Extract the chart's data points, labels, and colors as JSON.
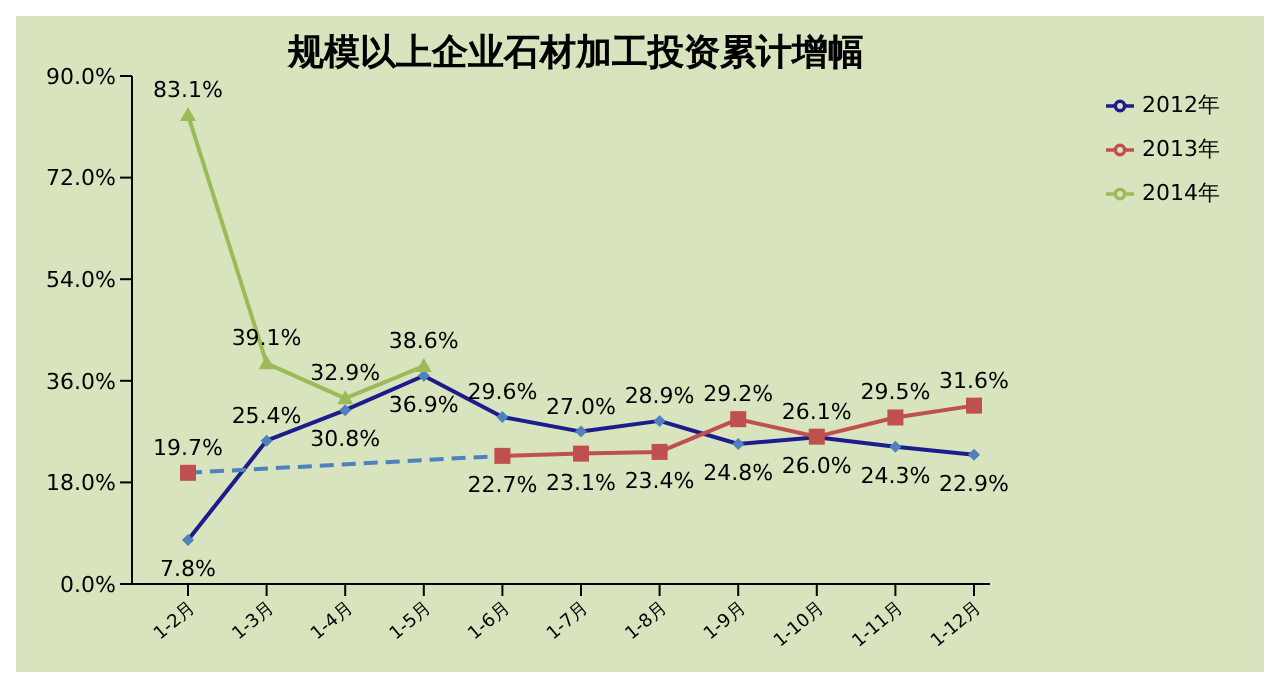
{
  "chart_data": {
    "type": "line",
    "title": "规模以上企业石材加工投资累计增幅",
    "categories": [
      "1-2月",
      "1-3月",
      "1-4月",
      "1-5月",
      "1-6月",
      "1-7月",
      "1-8月",
      "1-9月",
      "1-10月",
      "1-11月",
      "1-12月"
    ],
    "series": [
      {
        "name": "2012年",
        "color": "#1c1c8c",
        "marker": "diamond",
        "values": [
          7.8,
          25.4,
          30.8,
          36.9,
          29.6,
          27.0,
          28.9,
          24.8,
          26.0,
          24.3,
          22.9
        ],
        "value_labels": [
          "7.8%",
          "25.4%",
          "30.8%",
          "36.9%",
          "29.6%",
          "27.0%",
          "28.9%",
          "24.8%",
          "26.0%",
          "24.3%",
          "22.9%"
        ]
      },
      {
        "name": "2013年",
        "color": "#c0504d",
        "marker": "square",
        "values": [
          19.7,
          null,
          null,
          null,
          22.7,
          23.1,
          23.4,
          29.2,
          26.1,
          29.5,
          31.6
        ],
        "value_labels": [
          "19.7%",
          null,
          null,
          null,
          "22.7%",
          "23.1%",
          "23.4%",
          "29.2%",
          "26.1%",
          "29.5%",
          "31.6%"
        ]
      },
      {
        "name": "2014年",
        "color": "#9bbb59",
        "marker": "triangle",
        "values": [
          83.1,
          39.1,
          32.9,
          38.6,
          null,
          null,
          null,
          null,
          null,
          null,
          null
        ],
        "value_labels": [
          "83.1%",
          "39.1%",
          "32.9%",
          "38.6%",
          null,
          null,
          null,
          null,
          null,
          null,
          null
        ]
      },
      {
        "color": "#4f81bd",
        "marker": "none",
        "line_style": "dashed",
        "values": [
          19.7,
          null,
          null,
          null,
          22.7,
          null,
          null,
          null,
          null,
          null,
          null
        ]
      }
    ],
    "ylim": [
      0,
      90
    ],
    "yticks": [
      {
        "value": 0,
        "label": "0.0%"
      },
      {
        "value": 18,
        "label": "18.0%"
      },
      {
        "value": 36,
        "label": "36.0%"
      },
      {
        "value": 54,
        "label": "54.0%"
      },
      {
        "value": 72,
        "label": "72.0%"
      },
      {
        "value": 90,
        "label": "90.0%"
      }
    ],
    "grid": false,
    "legend": "top right"
  }
}
